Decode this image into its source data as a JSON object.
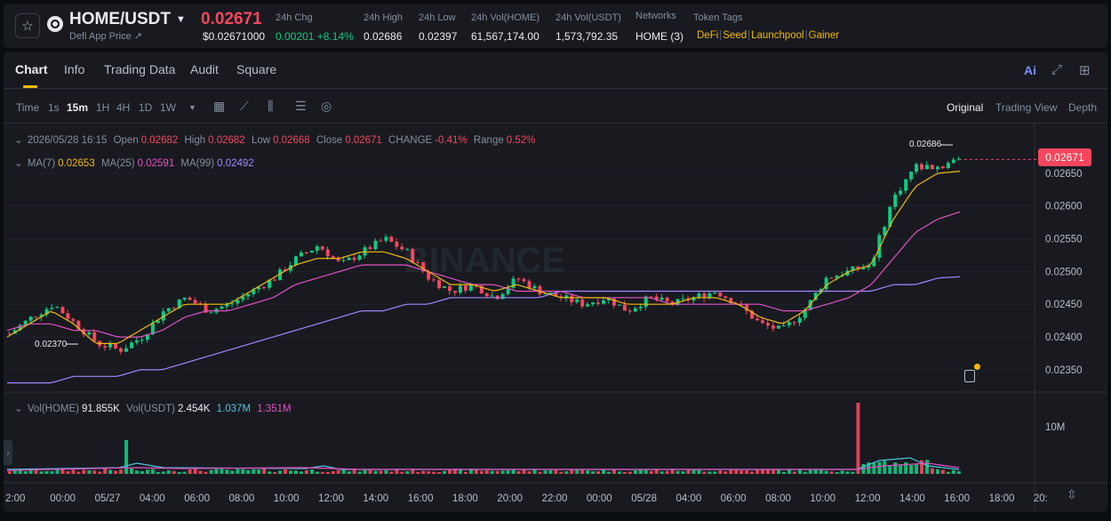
{
  "header": {
    "star_icon": "star-icon",
    "symbol": "HOME/USDT",
    "subtitle": "Defi App Price ↗",
    "price": "0.02671",
    "price_usd": "$0.02671000",
    "stats": [
      {
        "label": "24h Chg",
        "value": "0.00201 +8.14%"
      },
      {
        "label": "24h High",
        "value": "0.02686"
      },
      {
        "label": "24h Low",
        "value": "0.02397"
      },
      {
        "label": "24h Vol(HOME)",
        "value": "61,567,174.00"
      },
      {
        "label": "24h Vol(USDT)",
        "value": "1,573,792.35"
      },
      {
        "label": "Networks",
        "value": "HOME (3)"
      }
    ],
    "token_tags_label": "Token Tags",
    "tags": [
      "DeFi",
      "Seed",
      "Launchpool",
      "Gainer"
    ]
  },
  "tabs": [
    "Chart",
    "Info",
    "Trading Data",
    "Audit",
    "Square"
  ],
  "active_tab": "Chart",
  "ai_label": "Ai",
  "toolbar": {
    "intervals": [
      "Time",
      "1s",
      "15m",
      "1H",
      "4H",
      "1D",
      "1W"
    ],
    "active_interval": "15m",
    "views": [
      "Original",
      "Trading View",
      "Depth"
    ],
    "active_view": "Original"
  },
  "legend": {
    "date": "2026/05/28 16:15",
    "open_label": "Open",
    "open": "0.02682",
    "high_label": "High",
    "high": "0.02682",
    "low_label": "Low",
    "low": "0.02668",
    "close_label": "Close",
    "close": "0.02671",
    "change_label": "CHANGE",
    "change": "-0.41%",
    "range_label": "Range",
    "range": "0.52%",
    "ma7_label": "MA(7)",
    "ma7": "0.02653",
    "ma25_label": "MA(25)",
    "ma25": "0.02591",
    "ma99_label": "MA(99)",
    "ma99": "0.02492",
    "vol_home_label": "Vol(HOME)",
    "vol_home": "91.855K",
    "vol_usdt_label": "Vol(USDT)",
    "vol_usdt": "2.454K",
    "vol_ma1": "1.037M",
    "vol_ma2": "1.351M"
  },
  "watermark": "BINANCE",
  "current_price_tag": "0.02671",
  "high_marker": "0.02686",
  "low_marker": "0.02370",
  "volume_axis_label": "10M",
  "colors": {
    "up": "#0ecb81",
    "down": "#f6465d",
    "ma7": "#f0b90b",
    "ma25": "#e052c1",
    "ma99": "#a285ff",
    "accent": "#f0b90b"
  },
  "chart_data": {
    "type": "line",
    "ylim": [
      0.0232,
      0.027
    ],
    "yticks": [
      0.0235,
      0.024,
      0.0245,
      0.025,
      0.0255,
      0.026,
      0.0265
    ],
    "ytick_labels": [
      "0.02350",
      "0.02400",
      "0.02450",
      "0.02500",
      "0.02550",
      "0.02600",
      "0.02650"
    ],
    "x_labels": [
      "2:00",
      "00:00",
      "05/27",
      "04:00",
      "06:00",
      "08:00",
      "10:00",
      "12:00",
      "14:00",
      "16:00",
      "18:00",
      "20:00",
      "22:00",
      "00:00",
      "05/28",
      "04:00",
      "06:00",
      "08:00",
      "10:00",
      "12:00",
      "14:00",
      "16:00",
      "18:00",
      "20:"
    ],
    "close_path": [
      0.02405,
      0.0243,
      0.0245,
      0.0242,
      0.0239,
      0.0238,
      0.024,
      0.0244,
      0.0246,
      0.0244,
      0.0245,
      0.0247,
      0.0249,
      0.0252,
      0.0254,
      0.0251,
      0.0253,
      0.0255,
      0.0253,
      0.0249,
      0.0247,
      0.0248,
      0.0246,
      0.0249,
      0.0247,
      0.0246,
      0.0245,
      0.0246,
      0.0244,
      0.0246,
      0.0245,
      0.0246,
      0.0247,
      0.0245,
      0.0242,
      0.0241,
      0.0244,
      0.0249,
      0.025,
      0.0251,
      0.0261,
      0.0266,
      0.0266,
      0.0267
    ],
    "ma7_path": [
      0.024,
      0.0242,
      0.0244,
      0.0242,
      0.0239,
      0.0239,
      0.0241,
      0.0243,
      0.0245,
      0.0245,
      0.0245,
      0.0247,
      0.0249,
      0.0251,
      0.0252,
      0.0252,
      0.0253,
      0.0253,
      0.0252,
      0.025,
      0.0248,
      0.0248,
      0.0247,
      0.0248,
      0.0247,
      0.0246,
      0.0246,
      0.0246,
      0.0245,
      0.0245,
      0.0245,
      0.0246,
      0.0246,
      0.0245,
      0.0243,
      0.0242,
      0.0244,
      0.0248,
      0.025,
      0.0251,
      0.0258,
      0.0263,
      0.0265,
      0.02653
    ],
    "ma25_path": [
      0.0241,
      0.0242,
      0.0242,
      0.0241,
      0.0241,
      0.024,
      0.024,
      0.0241,
      0.0243,
      0.0244,
      0.0244,
      0.0245,
      0.0246,
      0.0248,
      0.0249,
      0.025,
      0.0251,
      0.0251,
      0.0251,
      0.025,
      0.0249,
      0.0248,
      0.0248,
      0.0247,
      0.0247,
      0.0247,
      0.0246,
      0.0246,
      0.0246,
      0.0246,
      0.0245,
      0.0245,
      0.0245,
      0.0245,
      0.0245,
      0.0244,
      0.0244,
      0.0245,
      0.0246,
      0.0248,
      0.0252,
      0.0256,
      0.0258,
      0.02591
    ],
    "ma99_path": [
      0.0233,
      0.0233,
      0.0233,
      0.0234,
      0.0234,
      0.0234,
      0.0235,
      0.0235,
      0.0236,
      0.0237,
      0.0238,
      0.0239,
      0.024,
      0.0241,
      0.0242,
      0.0243,
      0.0244,
      0.0244,
      0.0245,
      0.0245,
      0.0246,
      0.0246,
      0.0246,
      0.0246,
      0.0246,
      0.0247,
      0.0247,
      0.0247,
      0.0247,
      0.0247,
      0.0247,
      0.0247,
      0.0247,
      0.0247,
      0.0247,
      0.0247,
      0.0247,
      0.0247,
      0.0247,
      0.0247,
      0.0248,
      0.0248,
      0.0249,
      0.02492
    ]
  }
}
